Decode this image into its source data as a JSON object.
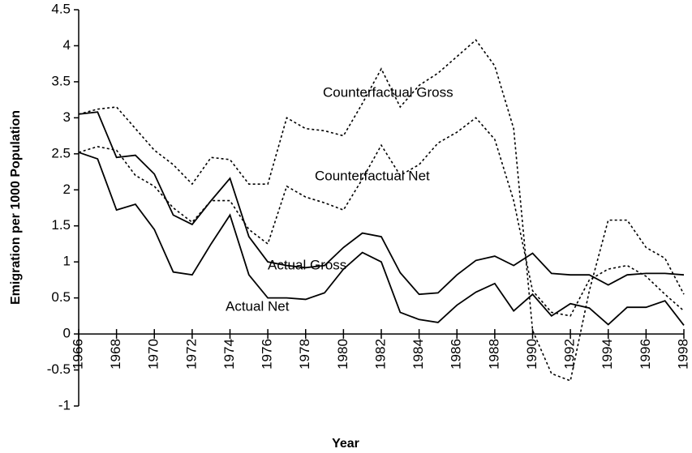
{
  "chart_data": {
    "type": "line",
    "x_label": "Year",
    "y_label": "Emigration per 1000 Population",
    "x": [
      1966,
      1967,
      1968,
      1969,
      1970,
      1971,
      1972,
      1973,
      1974,
      1975,
      1976,
      1977,
      1978,
      1979,
      1980,
      1981,
      1982,
      1983,
      1984,
      1985,
      1986,
      1987,
      1988,
      1989,
      1990,
      1991,
      1992,
      1993,
      1994,
      1995,
      1996,
      1997,
      1998
    ],
    "xlim": [
      1966,
      1998
    ],
    "xticks": [
      1966,
      1968,
      1970,
      1972,
      1974,
      1976,
      1978,
      1980,
      1982,
      1984,
      1986,
      1988,
      1990,
      1992,
      1994,
      1996,
      1998
    ],
    "ylim": [
      -1,
      4.5
    ],
    "yticks": [
      -1,
      -0.5,
      0,
      0.5,
      1,
      1.5,
      2,
      2.5,
      3,
      3.5,
      4,
      4.5
    ],
    "series": [
      {
        "name": "Counterfactual Gross",
        "color": "#000000",
        "dashed": true,
        "values": [
          3.05,
          3.12,
          3.15,
          2.85,
          2.55,
          2.35,
          2.08,
          2.45,
          2.42,
          2.08,
          2.08,
          3.0,
          2.85,
          2.82,
          2.75,
          3.2,
          3.68,
          3.15,
          3.45,
          3.62,
          3.85,
          4.08,
          3.72,
          2.85,
          0.05,
          -0.55,
          -0.65,
          0.6,
          1.58,
          1.58,
          1.2,
          1.05,
          0.55
        ]
      },
      {
        "name": "Counterfactual Net",
        "color": "#000000",
        "dashed": true,
        "values": [
          2.52,
          2.6,
          2.55,
          2.2,
          2.05,
          1.75,
          1.55,
          1.85,
          1.85,
          1.45,
          1.25,
          2.05,
          1.9,
          1.82,
          1.72,
          2.15,
          2.62,
          2.2,
          2.35,
          2.65,
          2.8,
          3.0,
          2.7,
          1.85,
          0.6,
          0.3,
          0.25,
          0.75,
          0.9,
          0.95,
          0.8,
          0.55,
          0.32
        ]
      },
      {
        "name": "Actual Gross",
        "color": "#000000",
        "dashed": false,
        "values": [
          3.05,
          3.08,
          2.45,
          2.48,
          2.22,
          1.65,
          1.52,
          1.85,
          2.16,
          1.35,
          1.0,
          0.95,
          0.92,
          0.95,
          1.2,
          1.4,
          1.35,
          0.85,
          0.55,
          0.57,
          0.82,
          1.02,
          1.08,
          0.95,
          1.12,
          0.84,
          0.82,
          0.82,
          0.68,
          0.82,
          0.84,
          0.84,
          0.82
        ]
      },
      {
        "name": "Actual Net",
        "color": "#000000",
        "dashed": false,
        "values": [
          2.52,
          2.43,
          1.72,
          1.8,
          1.45,
          0.86,
          0.82,
          1.25,
          1.65,
          0.82,
          0.5,
          0.5,
          0.48,
          0.57,
          0.9,
          1.13,
          1.0,
          0.3,
          0.2,
          0.16,
          0.4,
          0.58,
          0.7,
          0.32,
          0.55,
          0.25,
          0.42,
          0.36,
          0.13,
          0.37,
          0.37,
          0.46,
          0.12
        ]
      }
    ]
  }
}
